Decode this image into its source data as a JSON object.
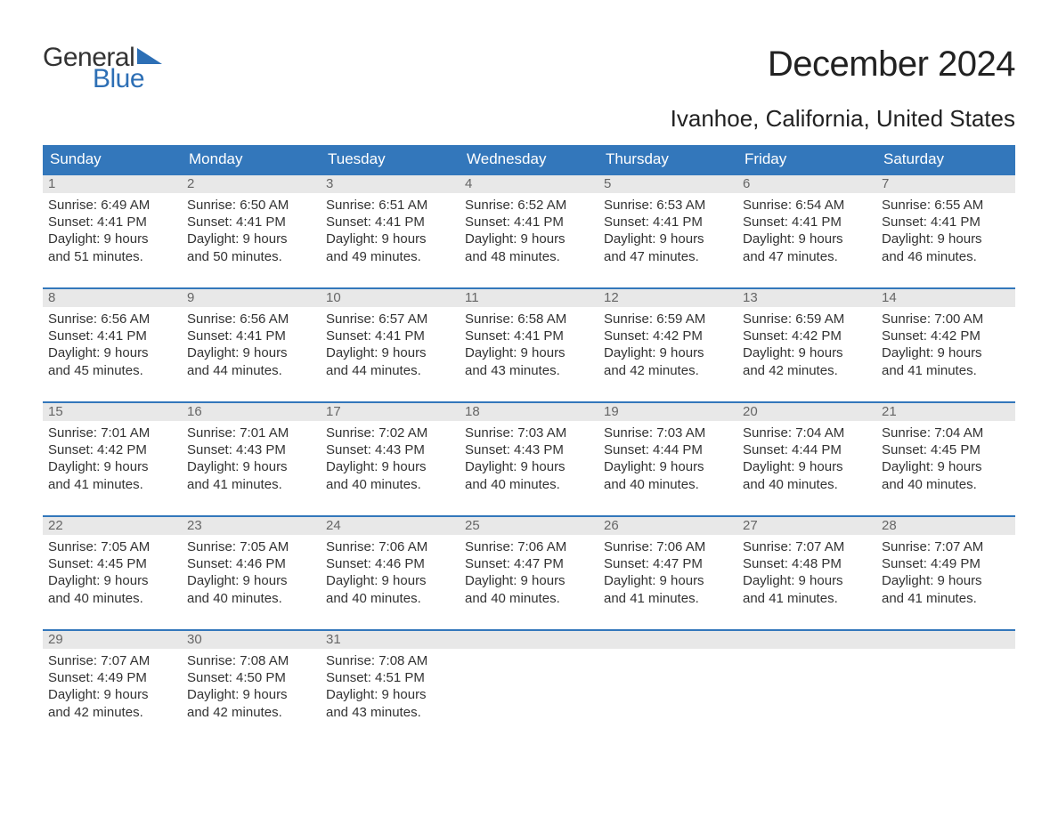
{
  "logo": {
    "general": "General",
    "blue": "Blue",
    "tri_color": "#2d6fb5"
  },
  "title": "December 2024",
  "location": "Ivanhoe, California, United States",
  "colors": {
    "header_bg": "#3377bb",
    "header_text": "#ffffff",
    "daynum_bg": "#e8e8e8",
    "daynum_text": "#666666",
    "body_text": "#333333",
    "week_border": "#3377bb",
    "logo_blue": "#2d6fb5"
  },
  "day_names": [
    "Sunday",
    "Monday",
    "Tuesday",
    "Wednesday",
    "Thursday",
    "Friday",
    "Saturday"
  ],
  "labels": {
    "sunrise": "Sunrise:",
    "sunset": "Sunset:",
    "daylight": "Daylight:"
  },
  "weeks": [
    [
      {
        "n": "1",
        "sunrise": "6:49 AM",
        "sunset": "4:41 PM",
        "daylight_h": "9",
        "daylight_m": "51"
      },
      {
        "n": "2",
        "sunrise": "6:50 AM",
        "sunset": "4:41 PM",
        "daylight_h": "9",
        "daylight_m": "50"
      },
      {
        "n": "3",
        "sunrise": "6:51 AM",
        "sunset": "4:41 PM",
        "daylight_h": "9",
        "daylight_m": "49"
      },
      {
        "n": "4",
        "sunrise": "6:52 AM",
        "sunset": "4:41 PM",
        "daylight_h": "9",
        "daylight_m": "48"
      },
      {
        "n": "5",
        "sunrise": "6:53 AM",
        "sunset": "4:41 PM",
        "daylight_h": "9",
        "daylight_m": "47"
      },
      {
        "n": "6",
        "sunrise": "6:54 AM",
        "sunset": "4:41 PM",
        "daylight_h": "9",
        "daylight_m": "47"
      },
      {
        "n": "7",
        "sunrise": "6:55 AM",
        "sunset": "4:41 PM",
        "daylight_h": "9",
        "daylight_m": "46"
      }
    ],
    [
      {
        "n": "8",
        "sunrise": "6:56 AM",
        "sunset": "4:41 PM",
        "daylight_h": "9",
        "daylight_m": "45"
      },
      {
        "n": "9",
        "sunrise": "6:56 AM",
        "sunset": "4:41 PM",
        "daylight_h": "9",
        "daylight_m": "44"
      },
      {
        "n": "10",
        "sunrise": "6:57 AM",
        "sunset": "4:41 PM",
        "daylight_h": "9",
        "daylight_m": "44"
      },
      {
        "n": "11",
        "sunrise": "6:58 AM",
        "sunset": "4:41 PM",
        "daylight_h": "9",
        "daylight_m": "43"
      },
      {
        "n": "12",
        "sunrise": "6:59 AM",
        "sunset": "4:42 PM",
        "daylight_h": "9",
        "daylight_m": "42"
      },
      {
        "n": "13",
        "sunrise": "6:59 AM",
        "sunset": "4:42 PM",
        "daylight_h": "9",
        "daylight_m": "42"
      },
      {
        "n": "14",
        "sunrise": "7:00 AM",
        "sunset": "4:42 PM",
        "daylight_h": "9",
        "daylight_m": "41"
      }
    ],
    [
      {
        "n": "15",
        "sunrise": "7:01 AM",
        "sunset": "4:42 PM",
        "daylight_h": "9",
        "daylight_m": "41"
      },
      {
        "n": "16",
        "sunrise": "7:01 AM",
        "sunset": "4:43 PM",
        "daylight_h": "9",
        "daylight_m": "41"
      },
      {
        "n": "17",
        "sunrise": "7:02 AM",
        "sunset": "4:43 PM",
        "daylight_h": "9",
        "daylight_m": "40"
      },
      {
        "n": "18",
        "sunrise": "7:03 AM",
        "sunset": "4:43 PM",
        "daylight_h": "9",
        "daylight_m": "40"
      },
      {
        "n": "19",
        "sunrise": "7:03 AM",
        "sunset": "4:44 PM",
        "daylight_h": "9",
        "daylight_m": "40"
      },
      {
        "n": "20",
        "sunrise": "7:04 AM",
        "sunset": "4:44 PM",
        "daylight_h": "9",
        "daylight_m": "40"
      },
      {
        "n": "21",
        "sunrise": "7:04 AM",
        "sunset": "4:45 PM",
        "daylight_h": "9",
        "daylight_m": "40"
      }
    ],
    [
      {
        "n": "22",
        "sunrise": "7:05 AM",
        "sunset": "4:45 PM",
        "daylight_h": "9",
        "daylight_m": "40"
      },
      {
        "n": "23",
        "sunrise": "7:05 AM",
        "sunset": "4:46 PM",
        "daylight_h": "9",
        "daylight_m": "40"
      },
      {
        "n": "24",
        "sunrise": "7:06 AM",
        "sunset": "4:46 PM",
        "daylight_h": "9",
        "daylight_m": "40"
      },
      {
        "n": "25",
        "sunrise": "7:06 AM",
        "sunset": "4:47 PM",
        "daylight_h": "9",
        "daylight_m": "40"
      },
      {
        "n": "26",
        "sunrise": "7:06 AM",
        "sunset": "4:47 PM",
        "daylight_h": "9",
        "daylight_m": "41"
      },
      {
        "n": "27",
        "sunrise": "7:07 AM",
        "sunset": "4:48 PM",
        "daylight_h": "9",
        "daylight_m": "41"
      },
      {
        "n": "28",
        "sunrise": "7:07 AM",
        "sunset": "4:49 PM",
        "daylight_h": "9",
        "daylight_m": "41"
      }
    ],
    [
      {
        "n": "29",
        "sunrise": "7:07 AM",
        "sunset": "4:49 PM",
        "daylight_h": "9",
        "daylight_m": "42"
      },
      {
        "n": "30",
        "sunrise": "7:08 AM",
        "sunset": "4:50 PM",
        "daylight_h": "9",
        "daylight_m": "42"
      },
      {
        "n": "31",
        "sunrise": "7:08 AM",
        "sunset": "4:51 PM",
        "daylight_h": "9",
        "daylight_m": "43"
      },
      null,
      null,
      null,
      null
    ]
  ]
}
